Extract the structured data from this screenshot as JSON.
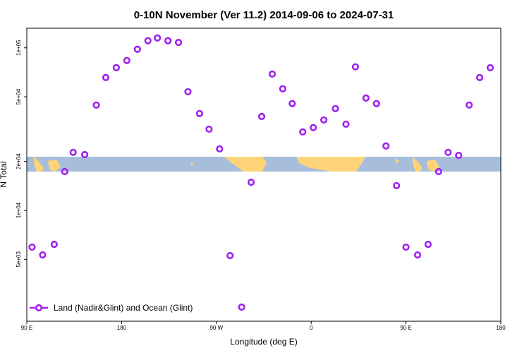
{
  "chart_data": {
    "type": "scatter",
    "title": "0-10N November (Ver 11.2)   2014-09-06 to 2024-07-31",
    "x_label": "Longitude (deg E)",
    "y_label": "N Total",
    "x": [
      95,
      105,
      116,
      126,
      134,
      145,
      156,
      165,
      175,
      185,
      195,
      205,
      214,
      224,
      234,
      243,
      254,
      263,
      273,
      283,
      294,
      303,
      313,
      323,
      333,
      342,
      352,
      362,
      372,
      383,
      393,
      402,
      412,
      422,
      431,
      441,
      450,
      461,
      471,
      481,
      490,
      500,
      510,
      520,
      530
    ],
    "series": [
      {
        "name": "Land (Nadir&Glint) and Ocean (Glint)",
        "color": "#a020f0",
        "values": [
          5940,
          5320,
          6180,
          17330,
          22750,
          22030,
          44460,
          65610,
          75500,
          83500,
          98000,
          110500,
          115000,
          110500,
          108000,
          53700,
          39400,
          31600,
          23900,
          5270,
          2540,
          14900,
          37800,
          69000,
          56000,
          45400,
          30400,
          32300,
          36000,
          42300,
          33900,
          76400,
          49100,
          45400,
          24900,
          14200,
          5940,
          5320,
          6180,
          17330,
          22750,
          21800,
          44460,
          65610,
          75500
        ]
      }
    ],
    "xlim": [
      90,
      540
    ],
    "xticks": [
      {
        "value": 90,
        "label": "90 E"
      },
      180,
      {
        "value": 270,
        "label": "90 W"
      },
      {
        "value": 360,
        "label": "0"
      },
      {
        "value": 450,
        "label": "90 E"
      },
      {
        "value": 540,
        "label": "180"
      }
    ],
    "ylim": [
      2080,
      132000
    ],
    "yticks": [
      {
        "value": 5000,
        "label": "5e+03"
      },
      {
        "value": 10000,
        "label": "1e+04"
      },
      {
        "value": 20000,
        "label": "2e+04"
      },
      {
        "value": 50000,
        "label": "5e+04"
      },
      {
        "value": 100000,
        "label": "1e+05"
      }
    ],
    "log_y": true,
    "legend": "bottomleft"
  }
}
